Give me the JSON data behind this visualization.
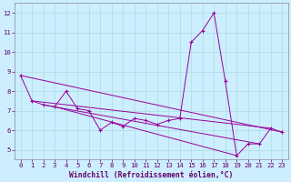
{
  "xlabel": "Windchill (Refroidissement éolien,°C)",
  "background_color": "#cceeff",
  "line_color": "#990099",
  "x_data": [
    0,
    1,
    2,
    3,
    4,
    5,
    6,
    7,
    8,
    9,
    10,
    11,
    12,
    13,
    14,
    15,
    16,
    17,
    18,
    19,
    20,
    21,
    22,
    23
  ],
  "y_main": [
    8.8,
    7.5,
    7.3,
    7.2,
    8.0,
    7.1,
    7.0,
    6.0,
    6.4,
    6.2,
    6.6,
    6.5,
    6.3,
    6.5,
    6.6,
    10.5,
    11.1,
    12.0,
    8.5,
    4.7,
    5.3,
    5.3,
    6.1,
    5.9
  ],
  "extra_lines": [
    {
      "x": [
        0,
        23
      ],
      "y": [
        8.8,
        5.9
      ]
    },
    {
      "x": [
        1,
        22
      ],
      "y": [
        7.5,
        6.1
      ]
    },
    {
      "x": [
        2,
        21
      ],
      "y": [
        7.3,
        5.3
      ]
    },
    {
      "x": [
        3,
        19
      ],
      "y": [
        7.2,
        4.7
      ]
    }
  ],
  "ylim": [
    4.5,
    12.5
  ],
  "xlim": [
    -0.5,
    23.5
  ],
  "yticks": [
    5,
    6,
    7,
    8,
    9,
    10,
    11,
    12
  ],
  "xticks": [
    0,
    1,
    2,
    3,
    4,
    5,
    6,
    7,
    8,
    9,
    10,
    11,
    12,
    13,
    14,
    15,
    16,
    17,
    18,
    19,
    20,
    21,
    22,
    23
  ],
  "grid_color": "#aadddd",
  "marker": "+"
}
